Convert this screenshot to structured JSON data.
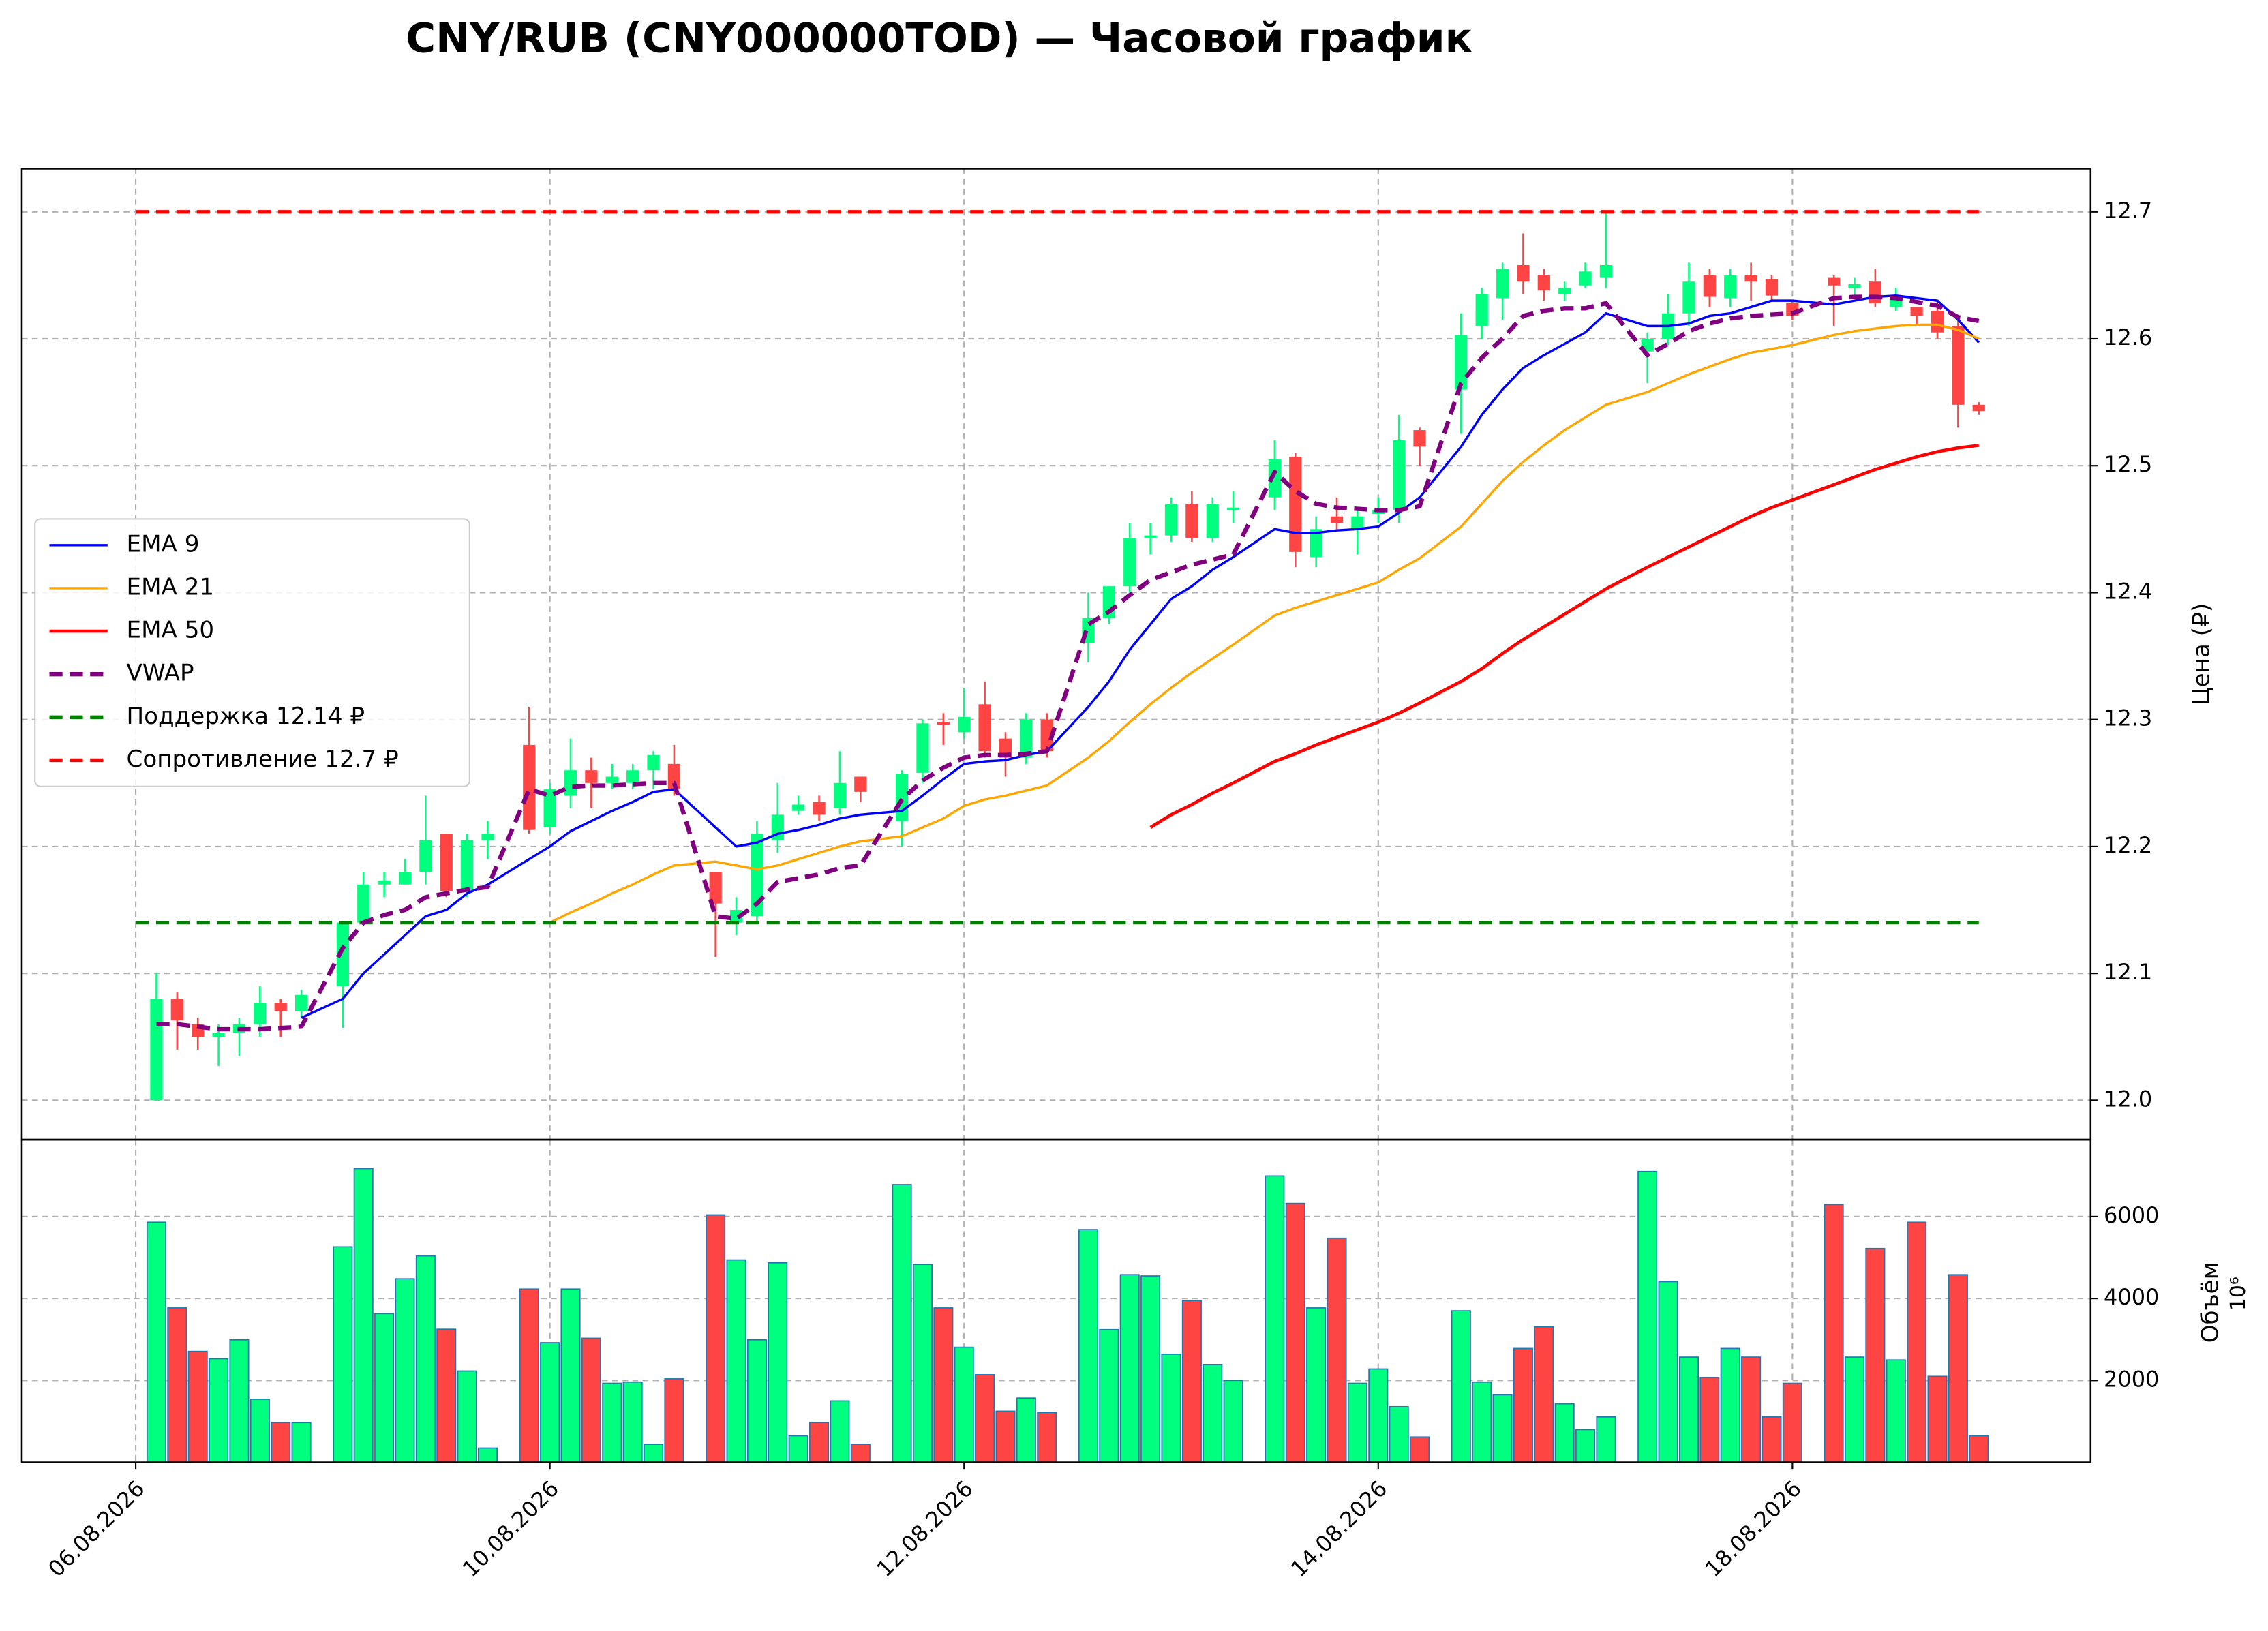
{
  "chart_data": [
    {
      "type": "candlestick",
      "title": "CNY/RUB (CNY000000TOD) — Часовой график",
      "y_label": "Цена (₽)",
      "x": [
        1,
        2,
        3,
        4,
        5,
        6,
        7,
        8,
        10,
        11,
        12,
        13,
        14,
        15,
        16,
        17,
        19,
        20,
        21,
        22,
        23,
        24,
        25,
        26,
        28,
        29,
        30,
        31,
        32,
        33,
        34,
        35,
        37,
        38,
        39,
        40,
        41,
        42,
        43,
        44,
        46,
        47,
        48,
        49,
        50,
        51,
        52,
        53,
        55,
        56,
        57,
        58,
        59,
        60,
        61,
        62,
        64,
        65,
        66,
        67,
        68,
        69,
        70,
        71,
        73,
        74,
        75,
        76,
        77,
        78,
        79,
        80,
        82,
        83,
        84,
        85,
        86,
        87,
        88,
        89
      ],
      "open": [
        12.0,
        12.08,
        12.06,
        12.05,
        12.053,
        12.06,
        12.077,
        12.07,
        12.09,
        12.14,
        12.17,
        12.17,
        12.18,
        12.21,
        12.165,
        12.205,
        12.28,
        12.215,
        12.24,
        12.26,
        12.25,
        12.25,
        12.26,
        12.265,
        12.18,
        12.14,
        12.145,
        12.205,
        12.228,
        12.235,
        12.23,
        12.255,
        12.22,
        12.258,
        12.298,
        12.29,
        12.312,
        12.285,
        12.27,
        12.3,
        12.36,
        12.38,
        12.405,
        12.443,
        12.445,
        12.47,
        12.443,
        12.465,
        12.475,
        12.507,
        12.428,
        12.46,
        12.45,
        12.462,
        12.465,
        12.528,
        12.56,
        12.61,
        12.632,
        12.658,
        12.65,
        12.635,
        12.642,
        12.648,
        12.59,
        12.6,
        12.62,
        12.65,
        12.632,
        12.65,
        12.647,
        12.628,
        12.648,
        12.64,
        12.645,
        12.625,
        12.625,
        12.622,
        12.61,
        12.548
      ],
      "high": [
        12.1,
        12.085,
        12.065,
        12.06,
        12.065,
        12.09,
        12.08,
        12.087,
        12.14,
        12.18,
        12.18,
        12.19,
        12.24,
        12.21,
        12.21,
        12.22,
        12.31,
        12.25,
        12.285,
        12.27,
        12.265,
        12.265,
        12.275,
        12.28,
        12.18,
        12.16,
        12.22,
        12.25,
        12.24,
        12.24,
        12.275,
        12.255,
        12.26,
        12.3,
        12.305,
        12.325,
        12.33,
        12.29,
        12.305,
        12.305,
        12.4,
        12.405,
        12.455,
        12.455,
        12.475,
        12.48,
        12.475,
        12.48,
        12.52,
        12.51,
        12.46,
        12.475,
        12.465,
        12.475,
        12.54,
        12.53,
        12.62,
        12.64,
        12.66,
        12.683,
        12.655,
        12.645,
        12.66,
        12.7,
        12.605,
        12.635,
        12.66,
        12.655,
        12.655,
        12.66,
        12.65,
        12.63,
        12.65,
        12.648,
        12.655,
        12.64,
        12.625,
        12.63,
        12.615,
        12.55
      ],
      "low": [
        12.0,
        12.04,
        12.04,
        12.027,
        12.035,
        12.05,
        12.05,
        12.065,
        12.057,
        12.14,
        12.16,
        12.17,
        12.17,
        12.16,
        12.16,
        12.19,
        12.21,
        12.21,
        12.23,
        12.23,
        12.245,
        12.245,
        12.245,
        12.24,
        12.113,
        12.13,
        12.14,
        12.195,
        12.225,
        12.22,
        12.225,
        12.235,
        12.2,
        12.25,
        12.28,
        12.285,
        12.27,
        12.255,
        12.265,
        12.27,
        12.345,
        12.375,
        12.4,
        12.43,
        12.44,
        12.44,
        12.44,
        12.455,
        12.465,
        12.42,
        12.42,
        12.45,
        12.43,
        12.455,
        12.455,
        12.5,
        12.525,
        12.6,
        12.615,
        12.635,
        12.63,
        12.63,
        12.64,
        12.64,
        12.565,
        12.595,
        12.61,
        12.625,
        12.625,
        12.63,
        12.63,
        12.615,
        12.61,
        12.632,
        12.625,
        12.622,
        12.61,
        12.6,
        12.53,
        12.54
      ],
      "close": [
        12.08,
        12.063,
        12.05,
        12.053,
        12.06,
        12.077,
        12.07,
        12.083,
        12.14,
        12.17,
        12.173,
        12.18,
        12.205,
        12.165,
        12.205,
        12.21,
        12.213,
        12.245,
        12.26,
        12.25,
        12.255,
        12.26,
        12.272,
        12.245,
        12.155,
        12.15,
        12.21,
        12.225,
        12.233,
        12.225,
        12.25,
        12.243,
        12.257,
        12.297,
        12.296,
        12.302,
        12.275,
        12.27,
        12.3,
        12.275,
        12.38,
        12.405,
        12.443,
        12.445,
        12.47,
        12.443,
        12.47,
        12.467,
        12.505,
        12.432,
        12.45,
        12.455,
        12.46,
        12.465,
        12.52,
        12.515,
        12.603,
        12.635,
        12.655,
        12.645,
        12.638,
        12.64,
        12.653,
        12.658,
        12.6,
        12.62,
        12.645,
        12.633,
        12.65,
        12.645,
        12.634,
        12.618,
        12.642,
        12.643,
        12.628,
        12.632,
        12.618,
        12.605,
        12.548,
        12.543
      ],
      "up_color": "#00ff7f",
      "down_color": "#ff4444",
      "series": [
        {
          "name": "EMA 9",
          "color": "#0000ff",
          "width": 1.6,
          "linestyle": "solid",
          "values": [
            null,
            null,
            null,
            null,
            null,
            null,
            null,
            12.065,
            12.08,
            12.1,
            12.115,
            12.13,
            12.145,
            12.15,
            12.163,
            12.17,
            12.19,
            12.2,
            12.212,
            12.22,
            12.228,
            12.235,
            12.243,
            12.245,
            12.215,
            12.2,
            12.203,
            12.21,
            12.213,
            12.217,
            12.222,
            12.225,
            12.228,
            12.24,
            12.253,
            12.265,
            12.267,
            12.268,
            12.272,
            12.275,
            12.31,
            12.33,
            12.355,
            12.375,
            12.395,
            12.405,
            12.418,
            12.428,
            12.45,
            12.447,
            12.447,
            12.449,
            12.45,
            12.452,
            12.463,
            12.475,
            12.515,
            12.54,
            12.56,
            12.577,
            12.587,
            12.596,
            12.605,
            12.62,
            12.61,
            12.61,
            12.612,
            12.618,
            12.62,
            12.625,
            12.63,
            12.63,
            12.627,
            12.63,
            12.633,
            12.634,
            12.632,
            12.63,
            12.615,
            12.597
          ]
        },
        {
          "name": "EMA 21",
          "color": "#ffa500",
          "width": 1.6,
          "linestyle": "solid",
          "values": [
            null,
            null,
            null,
            null,
            null,
            null,
            null,
            null,
            null,
            null,
            null,
            null,
            null,
            null,
            null,
            null,
            null,
            12.14,
            12.148,
            12.155,
            12.163,
            12.17,
            12.178,
            12.185,
            12.188,
            12.185,
            12.182,
            12.185,
            12.19,
            12.195,
            12.2,
            12.204,
            12.208,
            12.215,
            12.222,
            12.232,
            12.237,
            12.24,
            12.244,
            12.248,
            12.27,
            12.283,
            12.298,
            12.312,
            12.325,
            12.337,
            12.348,
            12.359,
            12.382,
            12.388,
            12.393,
            12.398,
            12.403,
            12.408,
            12.418,
            12.427,
            12.452,
            12.47,
            12.488,
            12.503,
            12.516,
            12.528,
            12.538,
            12.548,
            12.558,
            12.565,
            12.572,
            12.578,
            12.584,
            12.589,
            12.592,
            12.595,
            12.603,
            12.606,
            12.608,
            12.61,
            12.611,
            12.611,
            12.607,
            12.6
          ]
        },
        {
          "name": "EMA 50",
          "color": "#ff0000",
          "width": 2.2,
          "linestyle": "solid",
          "values": [
            null,
            null,
            null,
            null,
            null,
            null,
            null,
            null,
            null,
            null,
            null,
            null,
            null,
            null,
            null,
            null,
            null,
            null,
            null,
            null,
            null,
            null,
            null,
            null,
            null,
            null,
            null,
            null,
            null,
            null,
            null,
            null,
            null,
            null,
            null,
            null,
            null,
            null,
            null,
            null,
            null,
            null,
            null,
            12.215,
            12.225,
            12.233,
            12.242,
            12.25,
            12.267,
            12.273,
            12.28,
            12.286,
            12.292,
            12.298,
            12.305,
            12.313,
            12.33,
            12.34,
            12.352,
            12.363,
            12.373,
            12.383,
            12.393,
            12.403,
            12.42,
            12.428,
            12.436,
            12.444,
            12.452,
            12.46,
            12.467,
            12.473,
            12.485,
            12.491,
            12.497,
            12.502,
            12.507,
            12.511,
            12.514,
            12.516
          ]
        },
        {
          "name": "VWAP",
          "color": "#800080",
          "width": 3,
          "linestyle": "dashed",
          "values": [
            12.06,
            12.06,
            12.058,
            12.056,
            12.056,
            12.056,
            12.057,
            12.058,
            12.12,
            12.14,
            12.146,
            12.15,
            12.16,
            12.163,
            12.166,
            12.168,
            12.245,
            12.24,
            12.247,
            12.248,
            12.248,
            12.249,
            12.25,
            12.25,
            12.145,
            12.143,
            12.155,
            12.172,
            12.175,
            12.178,
            12.183,
            12.185,
            12.237,
            12.252,
            12.262,
            12.27,
            12.272,
            12.272,
            12.273,
            12.275,
            12.375,
            12.385,
            12.398,
            12.41,
            12.416,
            12.422,
            12.426,
            12.43,
            12.495,
            12.48,
            12.47,
            12.467,
            12.466,
            12.465,
            12.465,
            12.468,
            12.565,
            12.585,
            12.6,
            12.618,
            12.622,
            12.624,
            12.624,
            12.628,
            12.587,
            12.596,
            12.606,
            12.612,
            12.616,
            12.618,
            12.619,
            12.62,
            12.632,
            12.633,
            12.633,
            12.632,
            12.629,
            12.626,
            12.617,
            12.614
          ]
        }
      ],
      "levels": [
        {
          "name": "Поддержка 12.14 ₽",
          "value": 12.14,
          "color": "#008000"
        },
        {
          "name": "Сопротивление 12.7 ₽",
          "value": 12.7,
          "color": "#ff0000"
        }
      ],
      "xlim": [
        -5.5,
        94.4
      ],
      "xticks": [
        0,
        20,
        40,
        60,
        80
      ],
      "ylim": [
        11.969,
        12.734
      ],
      "yticks": [
        {
          "value": 12,
          "label": "12.0"
        },
        12.1,
        12.2,
        12.3,
        12.4,
        12.5,
        12.6,
        12.7
      ],
      "grid": true,
      "legend": "center left"
    },
    {
      "type": "bar",
      "y_label": "Объём",
      "y_offset_label": "10⁶",
      "x": [
        1,
        2,
        3,
        4,
        5,
        6,
        7,
        8,
        10,
        11,
        12,
        13,
        14,
        15,
        16,
        17,
        19,
        20,
        21,
        22,
        23,
        24,
        25,
        26,
        28,
        29,
        30,
        31,
        32,
        33,
        34,
        35,
        37,
        38,
        39,
        40,
        41,
        42,
        43,
        44,
        46,
        47,
        48,
        49,
        50,
        51,
        52,
        53,
        55,
        56,
        57,
        58,
        59,
        60,
        61,
        62,
        64,
        65,
        66,
        67,
        68,
        69,
        70,
        71,
        73,
        74,
        75,
        76,
        77,
        78,
        79,
        80,
        82,
        83,
        84,
        85,
        86,
        87,
        88,
        89
      ],
      "values": [
        5860,
        3770,
        2710,
        2530,
        2990,
        1540,
        970,
        970,
        5260,
        7170,
        3630,
        4480,
        5040,
        3250,
        2230,
        350,
        4230,
        2920,
        4230,
        3030,
        1930,
        1960,
        440,
        2040,
        6040,
        4940,
        2990,
        4870,
        650,
        970,
        1500,
        440,
        6780,
        4830,
        3770,
        2810,
        2140,
        1250,
        1570,
        1220,
        5680,
        3240,
        4580,
        4550,
        2640,
        3950,
        2390,
        2000,
        6990,
        6320,
        3770,
        5470,
        1930,
        2280,
        1360,
        620,
        3700,
        1960,
        1650,
        2780,
        3310,
        1430,
        800,
        1110,
        7100,
        4410,
        2570,
        2070,
        2780,
        2570,
        1110,
        1930,
        6290,
        2570,
        5220,
        2500,
        5860,
        2100,
        4580,
        650
      ],
      "edge_color": "#1f77b4",
      "xlim": [
        -5.5,
        94.4
      ],
      "xticks": [
        {
          "value": 0,
          "label": "06.08.2026"
        },
        {
          "value": 20,
          "label": "10.08.2026"
        },
        {
          "value": 40,
          "label": "12.08.2026"
        },
        {
          "value": 60,
          "label": "14.08.2026"
        },
        {
          "value": 80,
          "label": "18.08.2026"
        }
      ],
      "ylim": [
        0,
        7876
      ],
      "yticks": [
        2000,
        4000,
        6000
      ],
      "grid": true
    }
  ]
}
